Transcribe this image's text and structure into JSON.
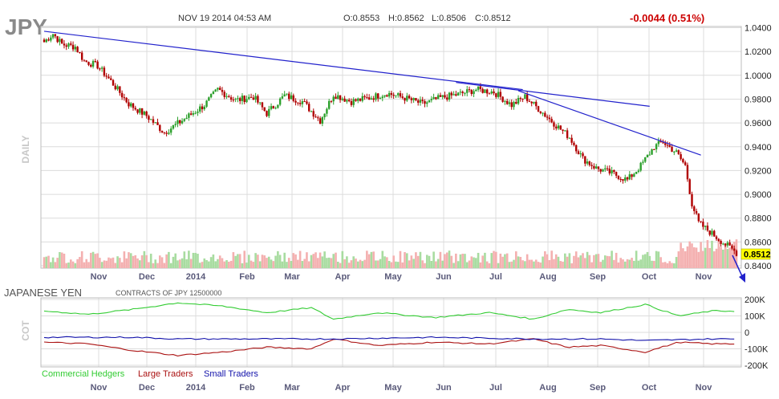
{
  "header": {
    "symbol": "JPY",
    "datetime": "NOV 19 2014 04:53 AM",
    "open": "O:0.8553",
    "high": "H:0.8562",
    "low": "L:0.8506",
    "close": "C:0.8512",
    "change": "-0.0044 (0.51%)"
  },
  "colors": {
    "up": "#2ca02c",
    "down": "#b00000",
    "trendline": "#2222cc",
    "grid": "#dcdcdc",
    "vol_up": "#a8dca0",
    "vol_down": "#f4b0b0",
    "commercial": "#33cc33",
    "large": "#aa1111",
    "small": "#1111aa",
    "last_price_bg": "#ffff00"
  },
  "chart_data": [
    {
      "type": "candlestick",
      "panel": "price",
      "side_label": "DAILY",
      "y_ticks": [
        "1.0400",
        "1.0200",
        "1.0000",
        "0.9800",
        "0.9600",
        "0.9400",
        "0.9200",
        "0.9000",
        "0.8800",
        "0.8600",
        "0.8400"
      ],
      "ylim": [
        0.838,
        1.041
      ],
      "x_labels": [
        "Nov",
        "Dec",
        "2014",
        "Feb",
        "Mar",
        "Apr",
        "May",
        "Jun",
        "Jul",
        "Aug",
        "Sep",
        "Oct",
        "Nov"
      ],
      "last_price_label": "0.8512",
      "close_path": [
        {
          "t": 0,
          "v": 1.028
        },
        {
          "t": 4,
          "v": 1.035
        },
        {
          "t": 8,
          "v": 1.026
        },
        {
          "t": 14,
          "v": 1.024
        },
        {
          "t": 18,
          "v": 1.012
        },
        {
          "t": 24,
          "v": 1.008
        },
        {
          "t": 30,
          "v": 0.995
        },
        {
          "t": 38,
          "v": 0.976
        },
        {
          "t": 46,
          "v": 0.966
        },
        {
          "t": 54,
          "v": 0.952
        },
        {
          "t": 62,
          "v": 0.962
        },
        {
          "t": 72,
          "v": 0.975
        },
        {
          "t": 78,
          "v": 0.988
        },
        {
          "t": 86,
          "v": 0.979
        },
        {
          "t": 94,
          "v": 0.982
        },
        {
          "t": 100,
          "v": 0.968
        },
        {
          "t": 108,
          "v": 0.983
        },
        {
          "t": 116,
          "v": 0.978
        },
        {
          "t": 124,
          "v": 0.962
        },
        {
          "t": 130,
          "v": 0.984
        },
        {
          "t": 138,
          "v": 0.978
        },
        {
          "t": 146,
          "v": 0.981
        },
        {
          "t": 154,
          "v": 0.985
        },
        {
          "t": 162,
          "v": 0.981
        },
        {
          "t": 170,
          "v": 0.976
        },
        {
          "t": 178,
          "v": 0.981
        },
        {
          "t": 186,
          "v": 0.984
        },
        {
          "t": 194,
          "v": 0.988
        },
        {
          "t": 202,
          "v": 0.986
        },
        {
          "t": 210,
          "v": 0.975
        },
        {
          "t": 216,
          "v": 0.982
        },
        {
          "t": 222,
          "v": 0.972
        },
        {
          "t": 230,
          "v": 0.958
        },
        {
          "t": 236,
          "v": 0.948
        },
        {
          "t": 242,
          "v": 0.93
        },
        {
          "t": 248,
          "v": 0.922
        },
        {
          "t": 256,
          "v": 0.917
        },
        {
          "t": 262,
          "v": 0.912
        },
        {
          "t": 268,
          "v": 0.924
        },
        {
          "t": 274,
          "v": 0.94
        },
        {
          "t": 278,
          "v": 0.944
        },
        {
          "t": 284,
          "v": 0.935
        },
        {
          "t": 288,
          "v": 0.924
        },
        {
          "t": 291,
          "v": 0.892
        },
        {
          "t": 294,
          "v": 0.876
        },
        {
          "t": 300,
          "v": 0.867
        },
        {
          "t": 306,
          "v": 0.858
        },
        {
          "t": 311,
          "v": 0.851
        }
      ],
      "trendlines": [
        {
          "x": [
            0,
            215
          ],
          "y": [
            1.037,
            0.988
          ]
        },
        {
          "x": [
            185,
            272
          ],
          "y": [
            0.994,
            0.974
          ]
        },
        {
          "x": [
            213,
            295
          ],
          "y": [
            0.987,
            0.933
          ]
        }
      ]
    },
    {
      "type": "line",
      "panel": "cot",
      "title": "JAPANESE YEN",
      "subtitle": "CONTRACTS OF JPY 12500000",
      "side_label": "COT",
      "y_ticks": [
        "200K",
        "100K",
        "0",
        "-100K",
        "-200K"
      ],
      "ylim": [
        -210000,
        210000
      ],
      "x_labels": [
        "Nov",
        "Dec",
        "2014",
        "Feb",
        "Mar",
        "Apr",
        "May",
        "Jun",
        "Jul",
        "Aug",
        "Sep",
        "Oct",
        "Nov"
      ],
      "series": [
        {
          "name": "Commercial Hedgers",
          "color": "#33cc33",
          "points": [
            {
              "t": 0,
              "v": 130000
            },
            {
              "t": 20,
              "v": 110000
            },
            {
              "t": 40,
              "v": 140000
            },
            {
              "t": 60,
              "v": 180000
            },
            {
              "t": 80,
              "v": 160000
            },
            {
              "t": 100,
              "v": 120000
            },
            {
              "t": 120,
              "v": 150000
            },
            {
              "t": 130,
              "v": 80000
            },
            {
              "t": 150,
              "v": 120000
            },
            {
              "t": 175,
              "v": 90000
            },
            {
              "t": 200,
              "v": 120000
            },
            {
              "t": 220,
              "v": 80000
            },
            {
              "t": 235,
              "v": 140000
            },
            {
              "t": 250,
              "v": 120000
            },
            {
              "t": 270,
              "v": 170000
            },
            {
              "t": 285,
              "v": 100000
            },
            {
              "t": 300,
              "v": 130000
            },
            {
              "t": 311,
              "v": 130000
            }
          ]
        },
        {
          "name": "Large Traders",
          "color": "#aa1111",
          "points": [
            {
              "t": 0,
              "v": -60000
            },
            {
              "t": 20,
              "v": -70000
            },
            {
              "t": 40,
              "v": -110000
            },
            {
              "t": 60,
              "v": -140000
            },
            {
              "t": 80,
              "v": -120000
            },
            {
              "t": 100,
              "v": -90000
            },
            {
              "t": 120,
              "v": -100000
            },
            {
              "t": 130,
              "v": -40000
            },
            {
              "t": 150,
              "v": -80000
            },
            {
              "t": 175,
              "v": -60000
            },
            {
              "t": 200,
              "v": -70000
            },
            {
              "t": 220,
              "v": -40000
            },
            {
              "t": 235,
              "v": -90000
            },
            {
              "t": 250,
              "v": -80000
            },
            {
              "t": 270,
              "v": -120000
            },
            {
              "t": 285,
              "v": -60000
            },
            {
              "t": 300,
              "v": -70000
            },
            {
              "t": 311,
              "v": -70000
            }
          ]
        },
        {
          "name": "Small Traders",
          "color": "#1111aa",
          "points": [
            {
              "t": 0,
              "v": -30000
            },
            {
              "t": 40,
              "v": -30000
            },
            {
              "t": 60,
              "v": -40000
            },
            {
              "t": 80,
              "v": -40000
            },
            {
              "t": 130,
              "v": -40000
            },
            {
              "t": 175,
              "v": -30000
            },
            {
              "t": 220,
              "v": -40000
            },
            {
              "t": 250,
              "v": -40000
            },
            {
              "t": 270,
              "v": -50000
            },
            {
              "t": 300,
              "v": -40000
            },
            {
              "t": 311,
              "v": -40000
            }
          ]
        }
      ]
    }
  ]
}
